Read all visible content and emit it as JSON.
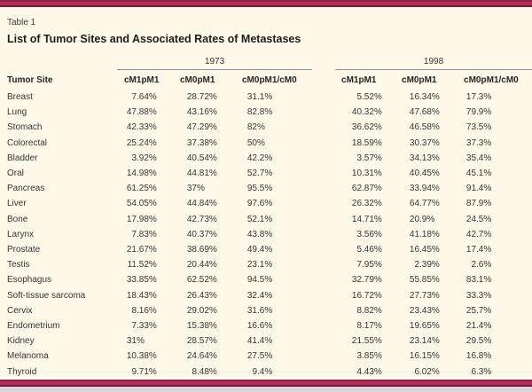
{
  "page": {
    "table_label": "Table 1",
    "title": "List of Tumor Sites and Associated Rates of Metastases"
  },
  "table": {
    "site_header": "Tumor Site",
    "year_groups": [
      {
        "year": "1973",
        "columns": [
          "cM1pM1",
          "cM0pM1",
          "cM0pM1/cM0"
        ]
      },
      {
        "year": "1998",
        "columns": [
          "cM1pM1",
          "cM0pM1",
          "cM0pM1/cM0"
        ]
      }
    ],
    "rows": [
      {
        "site": "Breast",
        "values": [
          "7.64%",
          "28.72%",
          "31.1%",
          "5.52%",
          "16.34%",
          "17.3%"
        ]
      },
      {
        "site": "Lung",
        "values": [
          "47.88%",
          "43.16%",
          "82.8%",
          "40.32%",
          "47.68%",
          "79.9%"
        ]
      },
      {
        "site": "Stomach",
        "values": [
          "42.33%",
          "47.29%",
          "82%",
          "36.62%",
          "46.58%",
          "73.5%"
        ]
      },
      {
        "site": "Colorectal",
        "values": [
          "25.24%",
          "37.38%",
          "50%",
          "18.59%",
          "30.37%",
          "37.3%"
        ]
      },
      {
        "site": "Bladder",
        "values": [
          "3.92%",
          "40.54%",
          "42.2%",
          "3.57%",
          "34.13%",
          "35.4%"
        ]
      },
      {
        "site": "Oral",
        "values": [
          "14.98%",
          "44.81%",
          "52.7%",
          "10.31%",
          "40.45%",
          "45.1%"
        ]
      },
      {
        "site": "Pancreas",
        "values": [
          "61.25%",
          "37%",
          "95.5%",
          "62.87%",
          "33.94%",
          "91.4%"
        ]
      },
      {
        "site": "Liver",
        "values": [
          "54.05%",
          "44.84%",
          "97.6%",
          "26.32%",
          "64.77%",
          "87.9%"
        ]
      },
      {
        "site": "Bone",
        "values": [
          "17.98%",
          "42.73%",
          "52.1%",
          "14.71%",
          "20.9%",
          "24.5%"
        ]
      },
      {
        "site": "Larynx",
        "values": [
          "7.83%",
          "40.37%",
          "43.8%",
          "3.56%",
          "41.18%",
          "42.7%"
        ]
      },
      {
        "site": "Prostate",
        "values": [
          "21.67%",
          "38.69%",
          "49.4%",
          "5.46%",
          "16.45%",
          "17.4%"
        ]
      },
      {
        "site": "Testis",
        "values": [
          "11.52%",
          "20.44%",
          "23.1%",
          "7.95%",
          "2.39%",
          "2.6%"
        ]
      },
      {
        "site": "Esophagus",
        "values": [
          "33.85%",
          "62.52%",
          "94.5%",
          "32.79%",
          "55.85%",
          "83.1%"
        ]
      },
      {
        "site": "Soft-tissue sarcoma",
        "values": [
          "18.43%",
          "26.43%",
          "32.4%",
          "16.72%",
          "27.73%",
          "33.3%"
        ]
      },
      {
        "site": "Cervix",
        "values": [
          "8.16%",
          "29.02%",
          "31.6%",
          "8.82%",
          "23.43%",
          "25.7%"
        ]
      },
      {
        "site": "Endometrium",
        "values": [
          "7.33%",
          "15.38%",
          "16.6%",
          "8.17%",
          "19.65%",
          "21.4%"
        ]
      },
      {
        "site": "Kidney",
        "values": [
          "31%",
          "28.57%",
          "41.4%",
          "21.55%",
          "23.14%",
          "29.5%"
        ]
      },
      {
        "site": "Melanoma",
        "values": [
          "10.38%",
          "24.64%",
          "27.5%",
          "3.85%",
          "16.15%",
          "16.8%"
        ]
      },
      {
        "site": "Thyroid",
        "values": [
          "9.71%",
          "8.48%",
          "9.4%",
          "4.43%",
          "6.02%",
          "6.3%"
        ]
      }
    ]
  },
  "colors": {
    "page_background": "#fdf8e8",
    "rule_band_crimson": "#b52d5b",
    "rule_band_dark_edge": "#6f1b39",
    "group_underline_gray": "#8f8f8f",
    "text": "#2e2e2e",
    "page_edge_gray": "#ddd6dd"
  }
}
